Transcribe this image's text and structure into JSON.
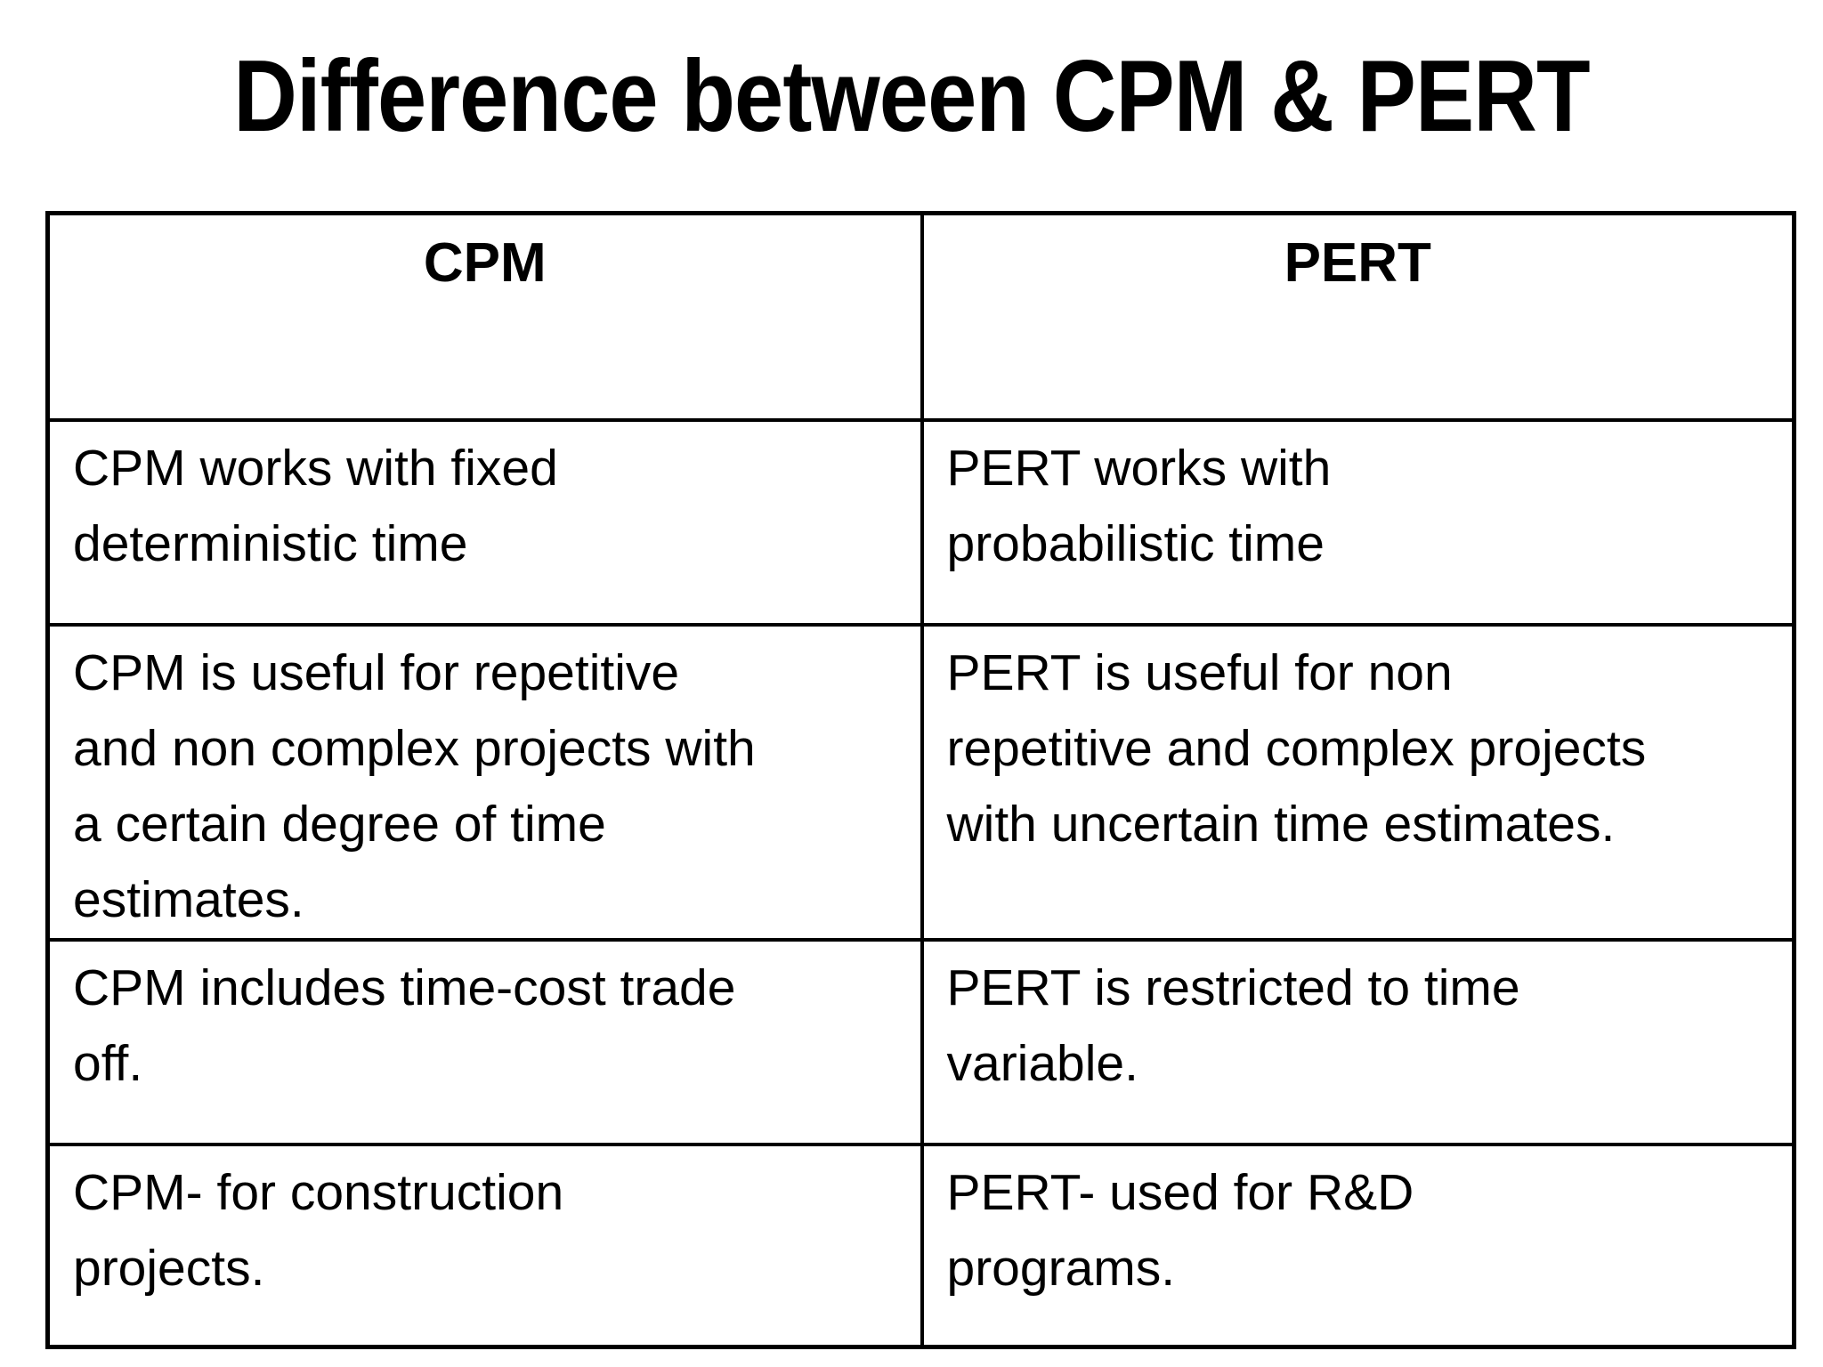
{
  "page": {
    "background_color": "#ffffff",
    "text_color": "#000000",
    "border_color": "#000000"
  },
  "title": "Difference between CPM & PERT",
  "table": {
    "headers": [
      "CPM",
      "PERT"
    ],
    "rows": [
      {
        "cpm": "CPM works with fixed\ndeterministic time",
        "pert": "PERT works with\nprobabilistic time"
      },
      {
        "cpm": "CPM is useful for repetitive\nand non complex projects with\na certain degree of time\nestimates.",
        "pert": "PERT is useful for non\nrepetitive and complex projects\nwith uncertain time estimates."
      },
      {
        "cpm": "CPM includes time-cost trade\noff.",
        "pert": "PERT is restricted to time\nvariable."
      },
      {
        "cpm": "CPM- for construction\nprojects.",
        "pert": "PERT- used for R&D\nprograms."
      }
    ]
  }
}
